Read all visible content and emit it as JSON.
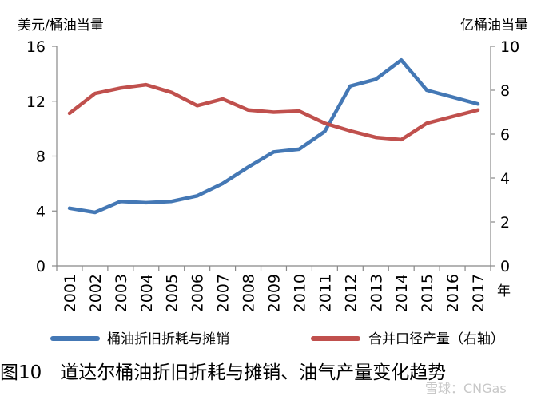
{
  "chart_data": {
    "type": "line",
    "title": "",
    "caption": "图10　道达尔桶油折旧折耗与摊销、油气产量变化趋势",
    "left_axis_unit": "美元/桶油当量",
    "right_axis_unit": "亿桶油当量",
    "x_axis_unit": "年",
    "categories": [
      "2001",
      "2002",
      "2003",
      "2004",
      "2005",
      "2006",
      "2007",
      "2008",
      "2009",
      "2010",
      "2011",
      "2012",
      "2013",
      "2014",
      "2015",
      "2016",
      "2017"
    ],
    "y_left": {
      "min": 0,
      "max": 16,
      "ticks": [
        0,
        4,
        8,
        12,
        16
      ]
    },
    "y_right": {
      "min": 0,
      "max": 10,
      "ticks": [
        0,
        2,
        4,
        6,
        8,
        10
      ]
    },
    "series": [
      {
        "name": "桶油折旧折耗与摊销",
        "axis": "left",
        "color": "#4478b5",
        "values": [
          4.2,
          3.9,
          4.7,
          4.6,
          4.7,
          5.1,
          6.0,
          7.2,
          8.3,
          8.5,
          9.8,
          13.1,
          13.6,
          15.0,
          12.8,
          12.3,
          11.8
        ]
      },
      {
        "name": "合并口径产量（右轴）",
        "axis": "right",
        "color": "#c0504d",
        "values": [
          6.95,
          7.85,
          8.1,
          8.25,
          7.9,
          7.3,
          7.6,
          7.1,
          7.0,
          7.05,
          6.5,
          6.15,
          5.85,
          5.75,
          6.5,
          6.8,
          7.1
        ]
      }
    ],
    "grid": false,
    "legend": "bottom"
  },
  "watermark": "雪球：CNGas"
}
